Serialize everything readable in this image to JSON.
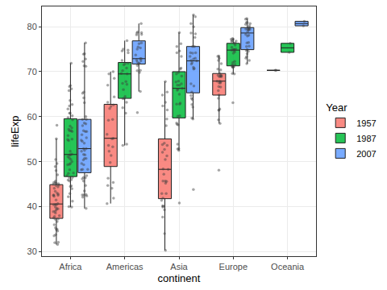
{
  "chart_data": {
    "type": "box",
    "xlabel": "continent",
    "ylabel": "lifeExp",
    "legend_title": "Year",
    "legend": "right",
    "grid": true,
    "marker": "jitter",
    "categories": [
      "Africa",
      "Americas",
      "Asia",
      "Europe",
      "Oceania"
    ],
    "ylim": [
      29,
      84.5
    ],
    "yticks": [
      30,
      40,
      50,
      60,
      70,
      80
    ],
    "series": [
      {
        "name": "1957",
        "color": "#F8766D",
        "values": [
          [
            45.7,
            32.0,
            40.4,
            49.6,
            34.9,
            40.5,
            40.4,
            37.5,
            39.9,
            42.5,
            40.7,
            45.1,
            42.5,
            37.3,
            44.4,
            36.0,
            38.0,
            36.7,
            39.0,
            32.1,
            44.8,
            34.6,
            33.5,
            44.7,
            45.0,
            39.5,
            45.3,
            38.9,
            37.2,
            35.3,
            42.3,
            58.1,
            45.4,
            33.8,
            45.2,
            38.6,
            37.8,
            55.1,
            41.5,
            48.9,
            39.3,
            31.6,
            35.0,
            48.0,
            39.6,
            43.4,
            43.0,
            42.8,
            47.1,
            42.6,
            44.1,
            50.5
          ],
          [
            64.4,
            41.9,
            53.3,
            70.0,
            56.1,
            53.6,
            59.4,
            62.3,
            49.8,
            51.4,
            52.3,
            44.1,
            40.7,
            44.7,
            62.6,
            55.2,
            45.4,
            59.2,
            63.2,
            46.3,
            68.5,
            61.8,
            69.5,
            67.0,
            55.1
          ],
          [
            30.3,
            53.8,
            39.3,
            41.4,
            50.5,
            64.8,
            40.2,
            39.9,
            47.2,
            48.4,
            67.8,
            65.5,
            45.7,
            54.1,
            52.7,
            58.0,
            59.5,
            52.1,
            45.2,
            41.9,
            37.7,
            40.1,
            45.6,
            51.3,
            42.9,
            63.2,
            61.5,
            48.3,
            62.4,
            53.6,
            42.9,
            45.7,
            34.0
          ],
          [
            59.3,
            67.5,
            69.2,
            58.5,
            66.6,
            64.8,
            69.0,
            71.8,
            67.5,
            68.9,
            69.1,
            67.9,
            69.6,
            73.5,
            68.9,
            67.8,
            61.4,
            73.0,
            73.4,
            65.8,
            61.5,
            64.1,
            61.7,
            69.2,
            67.9,
            66.7,
            72.5,
            70.6,
            48.1,
            70.4
          ],
          [
            70.3,
            70.3
          ]
        ]
      },
      {
        "name": "1987",
        "color": "#00BA38",
        "values": [
          [
            65.8,
            39.9,
            52.3,
            63.6,
            49.6,
            48.2,
            55.0,
            50.5,
            51.1,
            54.9,
            47.4,
            57.5,
            54.7,
            50.0,
            59.8,
            45.7,
            46.5,
            42.2,
            60.2,
            49.3,
            56.7,
            45.9,
            41.2,
            59.3,
            57.2,
            46.0,
            66.2,
            49.4,
            47.5,
            46.4,
            56.9,
            66.7,
            62.7,
            42.9,
            60.8,
            44.6,
            46.9,
            71.9,
            44.0,
            61.7,
            55.8,
            40.0,
            44.5,
            60.8,
            51.7,
            57.9,
            51.5,
            56.9,
            66.9,
            51.5,
            50.8,
            62.4
          ],
          [
            70.8,
            53.9,
            64.0,
            76.9,
            72.5,
            67.8,
            74.8,
            74.2,
            66.0,
            67.2,
            63.2,
            60.8,
            53.6,
            64.5,
            71.8,
            69.5,
            62.0,
            71.5,
            67.4,
            64.1,
            74.6,
            69.6,
            75.0,
            71.9,
            70.2
          ],
          [
            40.8,
            70.8,
            52.8,
            53.9,
            67.3,
            76.2,
            58.6,
            60.1,
            63.0,
            65.0,
            75.6,
            78.7,
            65.9,
            70.6,
            69.8,
            74.2,
            67.9,
            69.5,
            60.2,
            58.3,
            52.5,
            67.7,
            58.2,
            62.8,
            66.3,
            74.6,
            69.0,
            67.0,
            73.4,
            66.1,
            62.8,
            67.0,
            52.9
          ],
          [
            72.0,
            74.9,
            75.4,
            71.1,
            71.3,
            71.5,
            71.6,
            74.8,
            74.8,
            76.3,
            74.8,
            76.7,
            69.6,
            77.2,
            74.4,
            76.4,
            74.9,
            76.8,
            75.9,
            71.0,
            74.1,
            69.5,
            71.2,
            71.0,
            72.3,
            76.9,
            77.2,
            77.4,
            63.1,
            75.0
          ],
          [
            76.3,
            74.3
          ]
        ]
      },
      {
        "name": "2007",
        "color": "#619CFF",
        "values": [
          [
            72.3,
            42.7,
            56.7,
            50.7,
            52.3,
            49.6,
            50.4,
            44.7,
            50.7,
            65.2,
            46.5,
            55.3,
            48.3,
            54.8,
            71.3,
            51.6,
            58.0,
            52.9,
            56.7,
            59.4,
            60.0,
            56.0,
            46.4,
            54.1,
            42.6,
            45.7,
            74.0,
            59.4,
            48.3,
            54.5,
            64.2,
            72.8,
            71.2,
            42.1,
            52.9,
            56.9,
            46.9,
            76.4,
            46.2,
            65.5,
            63.1,
            42.6,
            48.2,
            49.3,
            58.6,
            39.6,
            52.5,
            58.4,
            73.9,
            51.5,
            42.4,
            43.5
          ],
          [
            75.3,
            65.6,
            72.4,
            80.7,
            78.6,
            72.9,
            78.8,
            78.3,
            72.2,
            75.0,
            71.9,
            70.3,
            60.9,
            70.2,
            72.6,
            76.2,
            72.9,
            75.5,
            71.8,
            71.4,
            78.7,
            69.8,
            78.2,
            76.4,
            73.7
          ],
          [
            43.8,
            75.6,
            64.1,
            59.7,
            73.0,
            82.2,
            64.7,
            70.7,
            71.0,
            59.5,
            80.7,
            82.6,
            72.5,
            67.3,
            78.6,
            77.6,
            72.0,
            74.2,
            66.8,
            62.1,
            63.8,
            75.6,
            65.5,
            71.7,
            72.8,
            80.0,
            72.4,
            74.1,
            78.4,
            70.6,
            74.2,
            73.4,
            62.7
          ],
          [
            76.4,
            79.8,
            79.4,
            74.9,
            73.0,
            75.7,
            76.5,
            78.3,
            79.3,
            80.7,
            79.4,
            79.5,
            73.3,
            81.8,
            78.9,
            80.5,
            74.5,
            79.8,
            80.2,
            75.6,
            78.1,
            72.5,
            74.0,
            74.7,
            77.9,
            80.9,
            80.9,
            81.7,
            71.8,
            79.4
          ],
          [
            81.2,
            80.2
          ]
        ]
      }
    ]
  }
}
